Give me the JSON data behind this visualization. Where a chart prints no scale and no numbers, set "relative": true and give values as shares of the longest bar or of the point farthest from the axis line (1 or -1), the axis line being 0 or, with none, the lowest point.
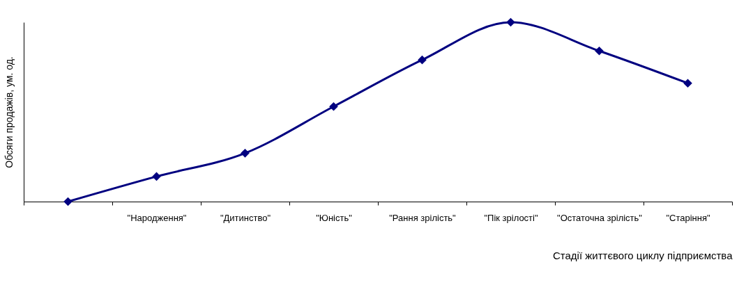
{
  "chart_data": {
    "type": "line",
    "xlabel": "Стадії життєвого циклу підприємства",
    "ylabel": "Обсяги продажів, ум. од.",
    "relative": true,
    "marker": "diamond",
    "categories": [
      null,
      "\"Народження\"",
      "\"Дитинство\"",
      "\"Юність\"",
      "\"Рання зрілість\"",
      "\"Пік зрілості\"",
      "\"Остаточна зрілість\"",
      "\"Старіння\""
    ],
    "series": [
      {
        "color": "#000080",
        "values": [
          0,
          0.14,
          0.27,
          0.53,
          0.79,
          1,
          0.84,
          0.66
        ]
      }
    ]
  }
}
